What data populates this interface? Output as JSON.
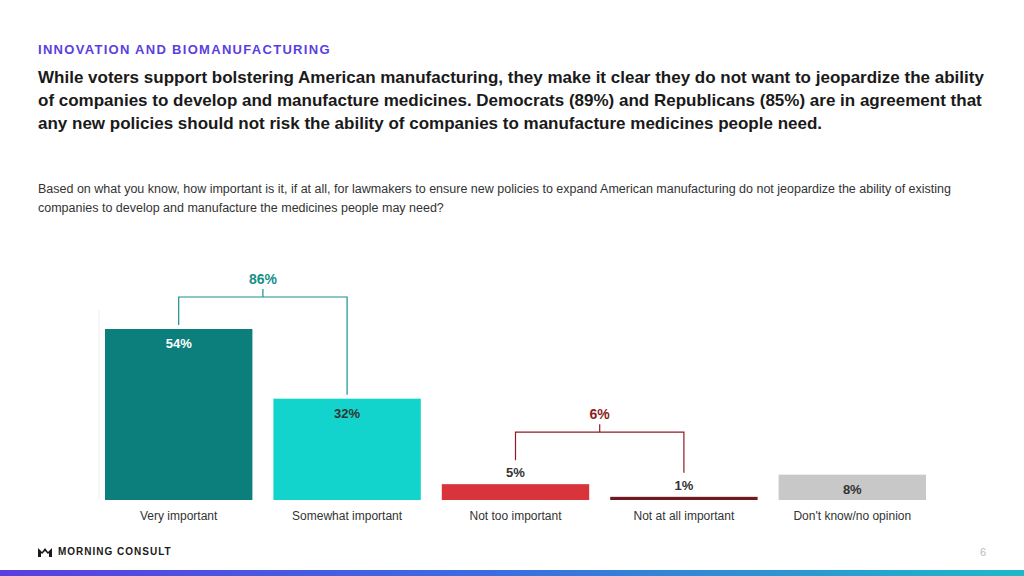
{
  "chart_data": {
    "type": "bar",
    "section": "INNOVATION AND BIOMANUFACTURING",
    "title": "While voters support bolstering American manufacturing, they make it clear they do not want to jeopardize the ability of companies to develop and manufacture medicines. Democrats (89%) and Republicans (85%) are in agreement that any new policies should not risk the ability of companies to manufacture medicines people need.",
    "subtitle": "Based on what you know, how important is it, if at all, for lawmakers to ensure new policies to expand American manufacturing do not jeopardize the ability of existing companies to develop and manufacture the medicines people may need?",
    "categories": [
      "Very important",
      "Somewhat important",
      "Not too important",
      "Not at all important",
      "Don't know/no opinion"
    ],
    "values": [
      54,
      32,
      5,
      1,
      8
    ],
    "value_labels": [
      "54%",
      "32%",
      "5%",
      "1%",
      "8%"
    ],
    "colors": [
      "#0c7f7c",
      "#12d4cc",
      "#d9343b",
      "#6e1a20",
      "#c8c8c8"
    ],
    "ylim": [
      0,
      60
    ],
    "grid": false,
    "data_labels": true,
    "tick_labels": "x",
    "annotations": [
      {
        "text": "86%",
        "color": "#178f8b"
      },
      {
        "text": "6%",
        "color": "#8b1d24"
      }
    ],
    "footer": "MORNING CONSULT",
    "page": "6"
  }
}
